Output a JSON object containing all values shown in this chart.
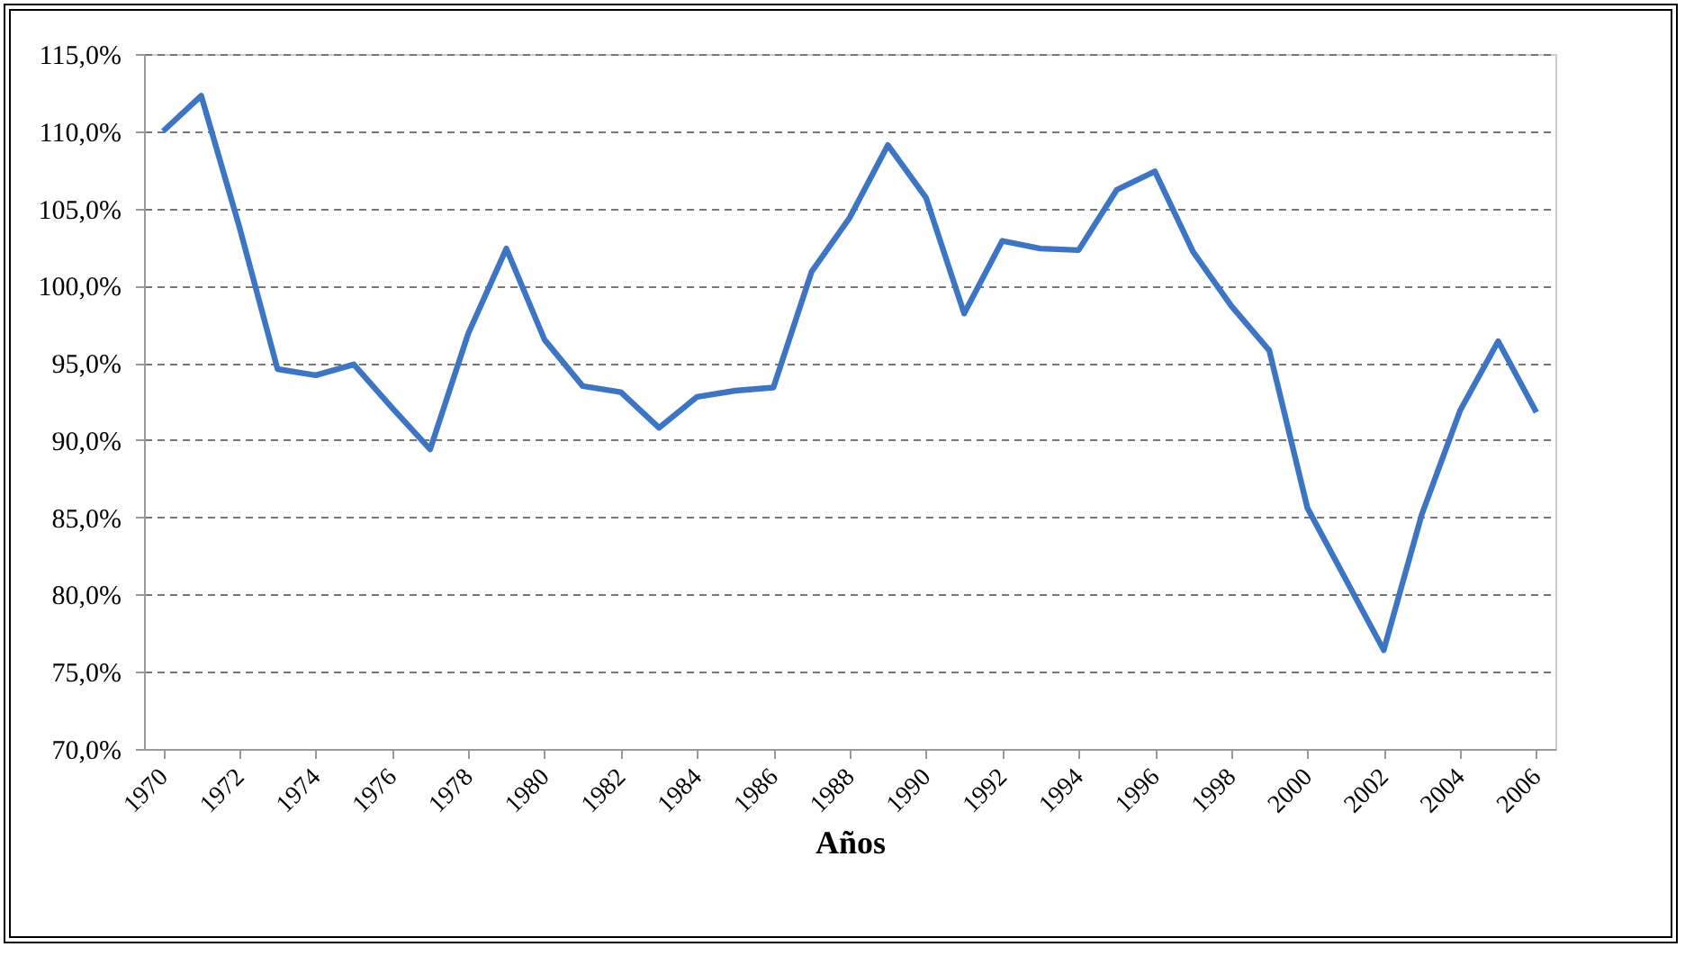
{
  "chart_data": {
    "type": "line",
    "xlabel": "Años",
    "x": [
      1970,
      1971,
      1972,
      1973,
      1974,
      1975,
      1976,
      1977,
      1978,
      1979,
      1980,
      1981,
      1982,
      1983,
      1984,
      1985,
      1986,
      1987,
      1988,
      1989,
      1990,
      1991,
      1992,
      1993,
      1994,
      1995,
      1996,
      1997,
      1998,
      1999,
      2000,
      2001,
      2002,
      2003,
      2004,
      2005,
      2006
    ],
    "series": [
      {
        "color": "#3b75c3",
        "values": [
          110.0,
          112.3,
          103.8,
          94.6,
          94.2,
          94.9,
          92.1,
          89.4,
          96.9,
          102.4,
          96.5,
          93.5,
          93.1,
          90.8,
          92.8,
          93.2,
          93.4,
          100.9,
          104.4,
          109.1,
          105.7,
          98.2,
          102.9,
          102.4,
          102.3,
          106.2,
          107.4,
          102.2,
          98.7,
          95.8,
          85.6,
          81.0,
          76.4,
          85.2,
          91.9,
          96.4,
          91.8
        ]
      }
    ],
    "xlim": [
      1969.5,
      2006.5
    ],
    "xticks": [
      1970,
      1972,
      1974,
      1976,
      1978,
      1980,
      1982,
      1984,
      1986,
      1988,
      1990,
      1992,
      1994,
      1996,
      1998,
      2000,
      2002,
      2004,
      2006
    ],
    "ylim": [
      70,
      115
    ],
    "yticks": [
      {
        "value": 70,
        "label": "70,0%"
      },
      {
        "value": 75,
        "label": "75,0%"
      },
      {
        "value": 80,
        "label": "80,0%"
      },
      {
        "value": 85,
        "label": "85,0%"
      },
      {
        "value": 90,
        "label": "90,0%"
      },
      {
        "value": 95,
        "label": "95,0%"
      },
      {
        "value": 100,
        "label": "100,0%"
      },
      {
        "value": 105,
        "label": "105,0%"
      },
      {
        "value": 110,
        "label": "110,0%"
      },
      {
        "value": 115,
        "label": "115,0%"
      }
    ],
    "grid": "y",
    "legend": false,
    "marker": "none",
    "line_style": "solid"
  }
}
